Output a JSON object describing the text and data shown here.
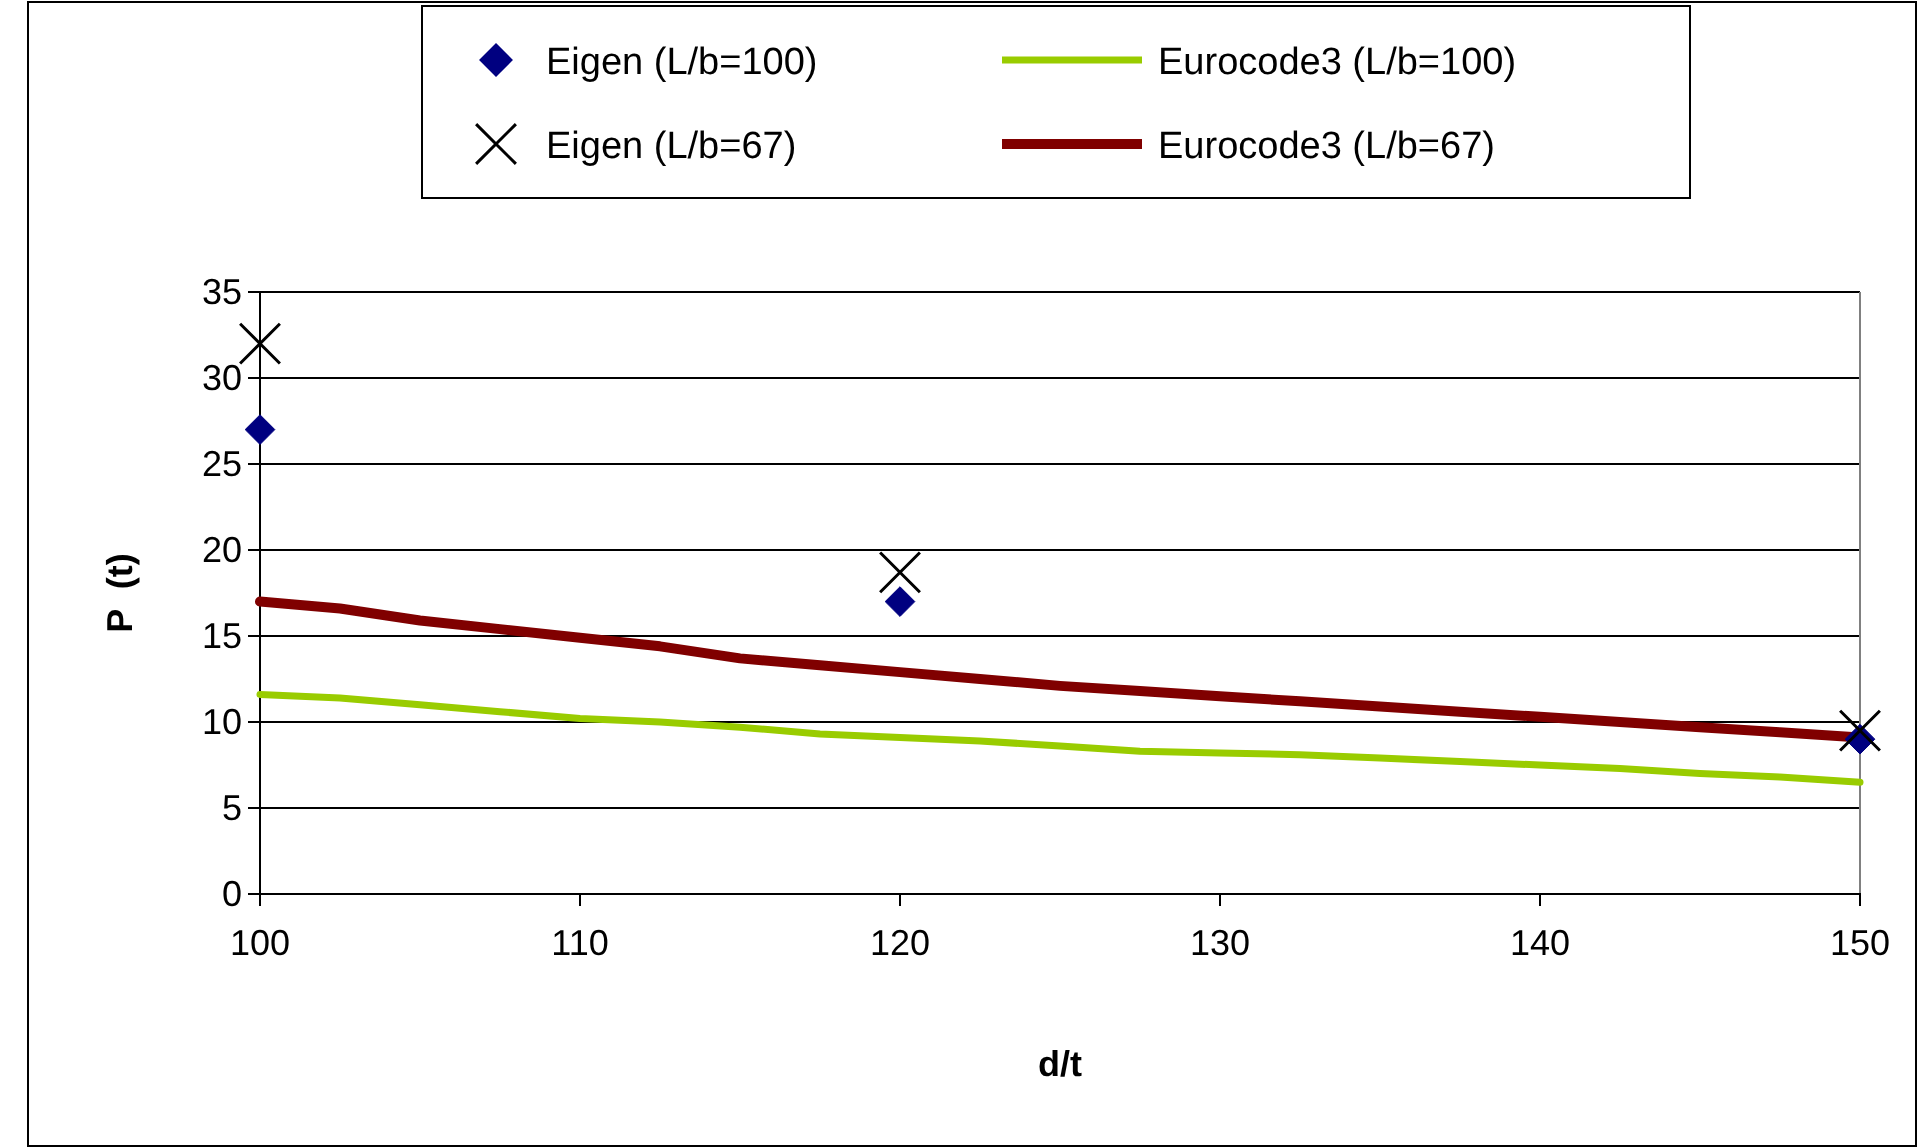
{
  "chart_data": {
    "type": "scatter",
    "xlabel": "d/t",
    "ylabel": "P  (t)",
    "xlim": [
      100,
      150
    ],
    "ylim": [
      0,
      35
    ],
    "xticks": [
      100,
      110,
      120,
      130,
      140,
      150
    ],
    "yticks": [
      0,
      5,
      10,
      15,
      20,
      25,
      30,
      35
    ],
    "grid": "y",
    "legend": "top",
    "series": [
      {
        "name": "Eigen (L/b=100)",
        "marker": "diamond",
        "color": "#000080",
        "x": [
          100,
          120,
          150
        ],
        "values": [
          27,
          17,
          9
        ]
      },
      {
        "name": "Eurocode3 (L/b=100)",
        "type": "line",
        "marker": "none",
        "color": "#99cc00",
        "x": [
          100,
          102.5,
          105,
          107.5,
          110,
          112.5,
          115,
          117.5,
          120,
          122.5,
          125,
          127.5,
          130,
          132.5,
          135,
          137.5,
          140,
          142.5,
          145,
          147.5,
          150
        ],
        "values": [
          11.6,
          11.4,
          11.0,
          10.6,
          10.2,
          10.0,
          9.7,
          9.3,
          9.1,
          8.9,
          8.6,
          8.3,
          8.2,
          8.1,
          7.9,
          7.7,
          7.5,
          7.3,
          7.0,
          6.8,
          6.5
        ]
      },
      {
        "name": "Eigen (L/b=67)",
        "marker": "cross",
        "color": "#000000",
        "x": [
          100,
          120,
          150
        ],
        "values": [
          32,
          18.7,
          9.5
        ]
      },
      {
        "name": "Eurocode3 (L/b=67)",
        "type": "line",
        "marker": "none",
        "color": "#800000",
        "x": [
          100,
          102.5,
          105,
          107.5,
          110,
          112.5,
          115,
          117.5,
          120,
          122.5,
          125,
          127.5,
          130,
          132.5,
          135,
          137.5,
          140,
          142.5,
          145,
          147.5,
          150
        ],
        "values": [
          17.0,
          16.6,
          15.9,
          15.4,
          14.9,
          14.4,
          13.7,
          13.3,
          12.9,
          12.5,
          12.1,
          11.8,
          11.5,
          11.2,
          10.9,
          10.6,
          10.3,
          10.0,
          9.7,
          9.4,
          9.1
        ]
      }
    ]
  }
}
